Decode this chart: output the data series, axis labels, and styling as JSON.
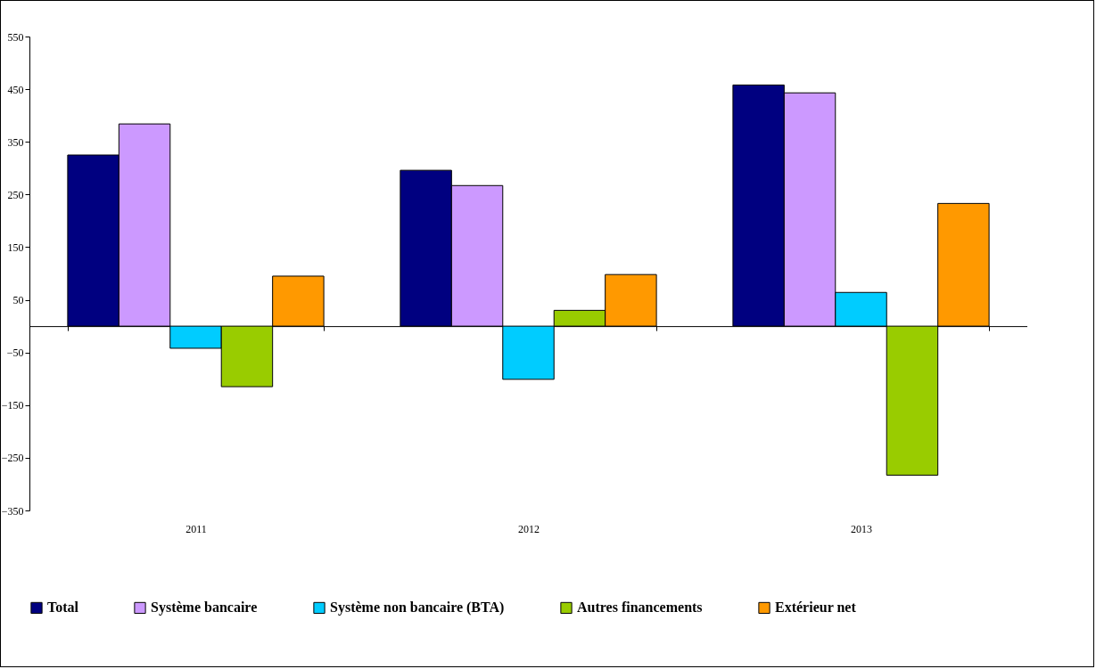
{
  "chart_data": {
    "type": "bar",
    "categories": [
      "2011",
      "2012",
      "2013"
    ],
    "series": [
      {
        "name": "Total",
        "color": "#000080",
        "values": [
          325,
          296,
          458
        ]
      },
      {
        "name": "Système bancaire",
        "color": "#cc99ff",
        "values": [
          384,
          267,
          443
        ]
      },
      {
        "name": "Système non bancaire (BTA)",
        "color": "#00ccff",
        "values": [
          -42,
          -101,
          64
        ]
      },
      {
        "name": "Autres financements",
        "color": "#99cc00",
        "values": [
          -115,
          30,
          -283
        ]
      },
      {
        "name": "Extérieur net",
        "color": "#ff9900",
        "values": [
          95,
          98,
          233
        ]
      }
    ],
    "ylim": [
      -350,
      550
    ],
    "yticks": [
      -350,
      -250,
      -150,
      -50,
      50,
      150,
      250,
      350,
      450,
      550
    ],
    "grid": false,
    "legend": "bottom"
  }
}
